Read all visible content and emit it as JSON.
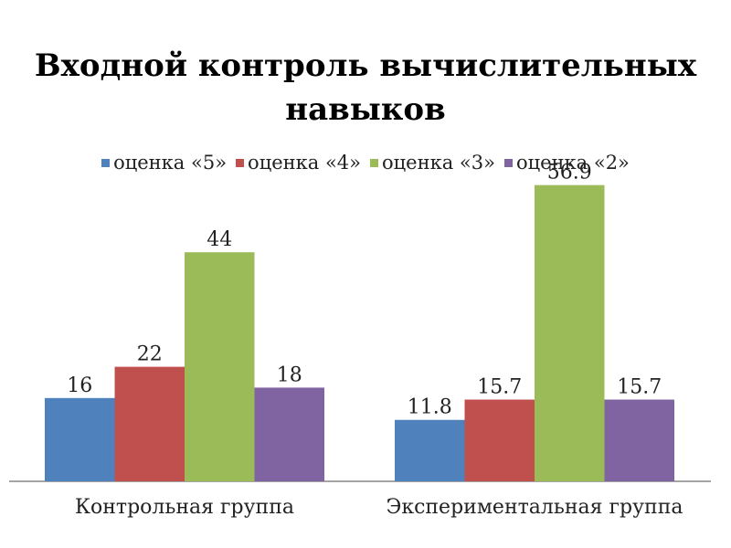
{
  "chart_data": {
    "type": "bar",
    "title": "Входной контроль вычислительных навыков",
    "categories": [
      "Контрольная группа",
      "Экспериментальная группа"
    ],
    "series": [
      {
        "name": "оценка «5»",
        "color": "#4f81bd",
        "values": [
          16,
          11.8
        ],
        "labels": [
          "16",
          "11.8"
        ]
      },
      {
        "name": "оценка «4»",
        "color": "#c0504d",
        "values": [
          22,
          15.7
        ],
        "labels": [
          "22",
          "15.7"
        ]
      },
      {
        "name": "оценка «3»",
        "color": "#9bbb59",
        "values": [
          44,
          56.9
        ],
        "labels": [
          "44",
          "56.9"
        ]
      },
      {
        "name": "оценка «2»",
        "color": "#8064a2",
        "values": [
          18,
          15.7
        ],
        "labels": [
          "18",
          "15.7"
        ]
      }
    ],
    "ylim": [
      0,
      60
    ],
    "grid": false,
    "legend_position": "top"
  }
}
